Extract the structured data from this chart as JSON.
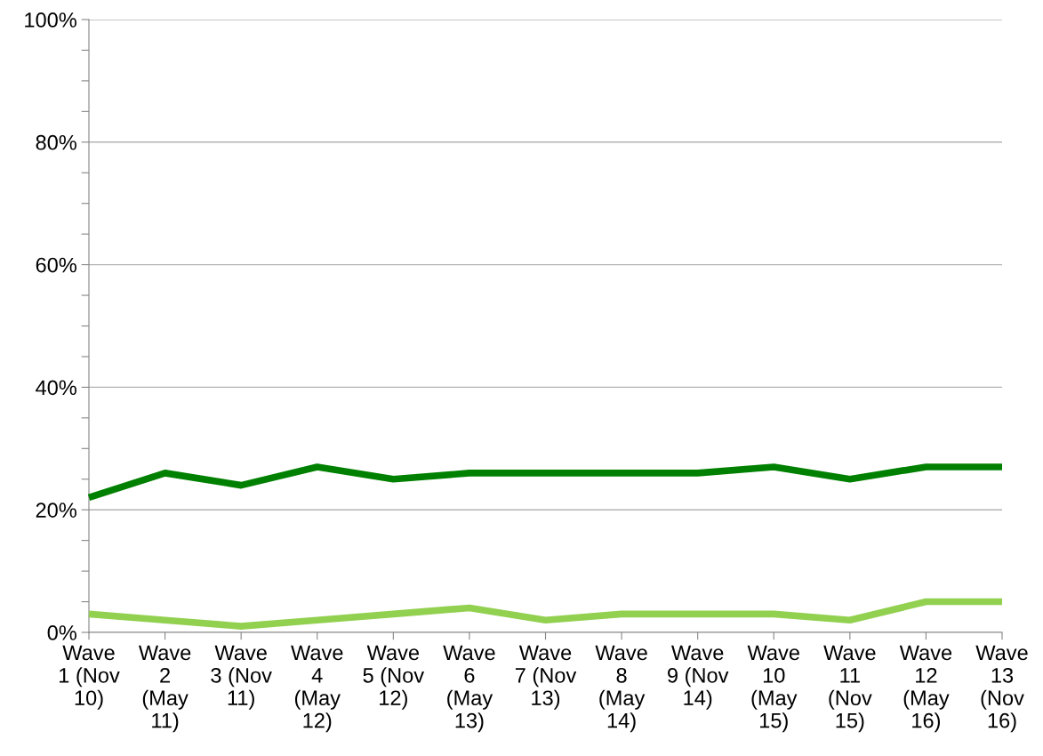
{
  "chart_data": {
    "type": "line",
    "categories": [
      "Wave\n1 (Nov\n10)",
      "Wave\n2\n(May\n11)",
      "Wave\n3 (Nov\n11)",
      "Wave\n4\n(May\n12)",
      "Wave\n5 (Nov\n12)",
      "Wave\n6\n(May\n13)",
      "Wave\n7 (Nov\n13)",
      "Wave\n8\n(May\n14)",
      "Wave\n9 (Nov\n14)",
      "Wave\n10\n(May\n15)",
      "Wave\n11\n(Nov\n15)",
      "Wave\n12\n(May\n16)",
      "Wave\n13\n(Nov\n16)"
    ],
    "series": [
      {
        "color": "#008000",
        "values": [
          22,
          26,
          24,
          27,
          25,
          26,
          26,
          26,
          26,
          27,
          25,
          27,
          27
        ]
      },
      {
        "color": "#92d050",
        "values": [
          3,
          2,
          1,
          2,
          3,
          4,
          2,
          3,
          3,
          3,
          2,
          5,
          5
        ]
      }
    ],
    "ylim": [
      0,
      100
    ],
    "yticks": [
      {
        "value": 0,
        "label": "0%"
      },
      {
        "value": 5,
        "label": null
      },
      {
        "value": 10,
        "label": null
      },
      {
        "value": 15,
        "label": null
      },
      {
        "value": 20,
        "label": "20%"
      },
      {
        "value": 25,
        "label": null
      },
      {
        "value": 30,
        "label": null
      },
      {
        "value": 35,
        "label": null
      },
      {
        "value": 40,
        "label": "40%"
      },
      {
        "value": 45,
        "label": null
      },
      {
        "value": 50,
        "label": null
      },
      {
        "value": 55,
        "label": null
      },
      {
        "value": 60,
        "label": "60%"
      },
      {
        "value": 65,
        "label": null
      },
      {
        "value": 70,
        "label": null
      },
      {
        "value": 75,
        "label": null
      },
      {
        "value": 80,
        "label": "80%"
      },
      {
        "value": 85,
        "label": null
      },
      {
        "value": 90,
        "label": null
      },
      {
        "value": 95,
        "label": null
      },
      {
        "value": 100,
        "label": "100%"
      }
    ],
    "grid": "y",
    "legend": false,
    "marker": "none",
    "line_style": "solid"
  }
}
